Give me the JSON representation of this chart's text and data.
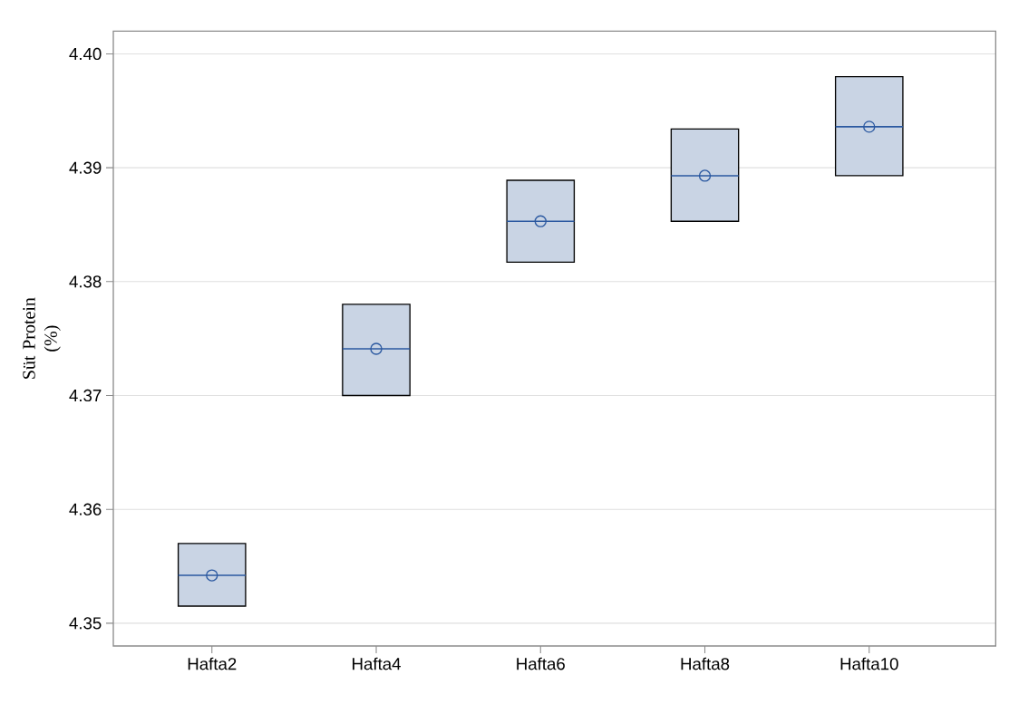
{
  "chart_data": {
    "type": "box",
    "ylabel": "Süt Protein (%)",
    "categories": [
      "Hafta2",
      "Hafta4",
      "Hafta6",
      "Hafta8",
      "Hafta10"
    ],
    "boxes": [
      {
        "low": 4.3515,
        "q1": 4.3515,
        "median": 4.3542,
        "q3": 4.357,
        "high": 4.357,
        "mean": 4.3542
      },
      {
        "low": 4.37,
        "q1": 4.37,
        "median": 4.3741,
        "q3": 4.378,
        "high": 4.378,
        "mean": 4.3741
      },
      {
        "low": 4.3817,
        "q1": 4.3817,
        "median": 4.3853,
        "q3": 4.3889,
        "high": 4.3889,
        "mean": 4.3853
      },
      {
        "low": 4.3853,
        "q1": 4.3853,
        "median": 4.3893,
        "q3": 4.3934,
        "high": 4.3934,
        "mean": 4.3893
      },
      {
        "low": 4.3893,
        "q1": 4.3893,
        "median": 4.3936,
        "q3": 4.398,
        "high": 4.398,
        "mean": 4.3936
      }
    ],
    "color": "#c9d4e4",
    "ylim": [
      4.348,
      4.402
    ],
    "yticks": [
      4.35,
      4.36,
      4.37,
      4.38,
      4.39,
      {
        "value": 4.4,
        "label": "4.40"
      }
    ],
    "grid": "y"
  }
}
